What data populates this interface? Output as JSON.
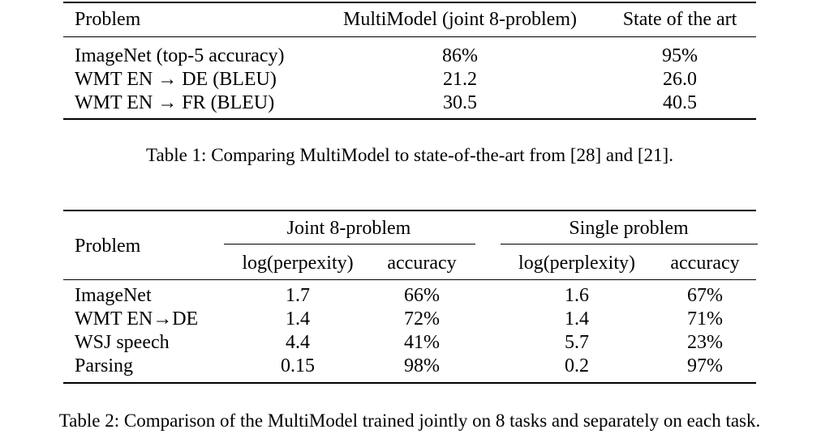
{
  "table1": {
    "header": [
      "Problem",
      "MultiModel (joint 8-problem)",
      "State of the art"
    ],
    "rows": [
      [
        "ImageNet (top-5 accuracy)",
        "86%",
        "95%"
      ],
      [
        "WMT EN → DE (BLEU)",
        "21.2",
        "26.0"
      ],
      [
        "WMT EN → FR (BLEU)",
        "30.5",
        "40.5"
      ]
    ],
    "caption": "Table 1: Comparing MultiModel to state-of-the-art from [28] and [21]."
  },
  "table2": {
    "problem_header": "Problem",
    "group_joint": "Joint 8-problem",
    "group_single": "Single problem",
    "subheaders": [
      "log(perpexity)",
      "accuracy",
      "log(perplexity)",
      "accuracy"
    ],
    "rows": [
      [
        "ImageNet",
        "1.7",
        "66%",
        "1.6",
        "67%"
      ],
      [
        "WMT EN→DE",
        "1.4",
        "72%",
        "1.4",
        "71%"
      ],
      [
        "WSJ speech",
        "4.4",
        "41%",
        "5.7",
        "23%"
      ],
      [
        "Parsing",
        "0.15",
        "98%",
        "0.2",
        "97%"
      ]
    ],
    "caption": "Table 2: Comparison of the MultiModel trained jointly on 8 tasks and separately on each task."
  }
}
